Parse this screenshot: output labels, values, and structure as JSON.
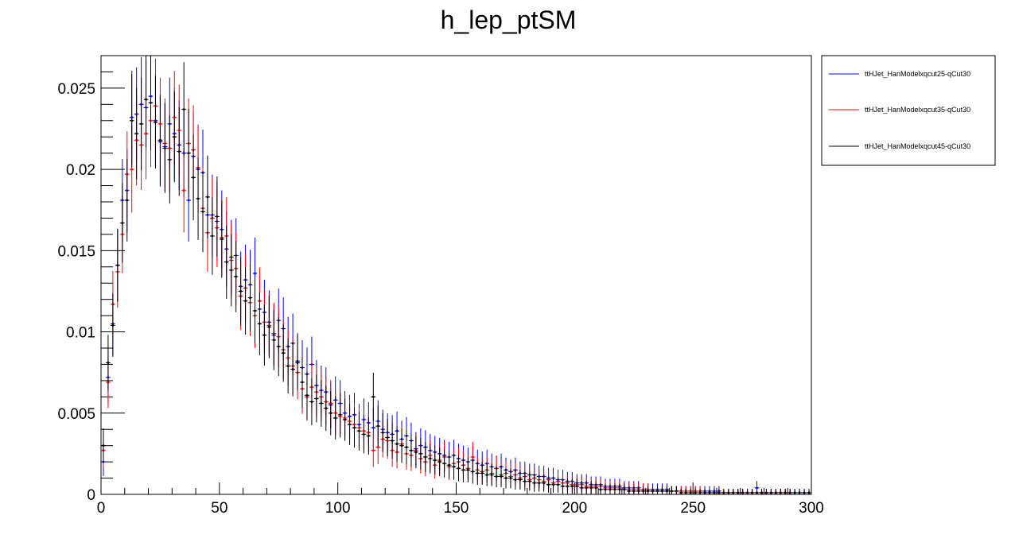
{
  "chart_data": {
    "type": "scatter",
    "title": "h_lep_ptSM",
    "xlabel": "",
    "ylabel": "",
    "xlim": [
      0,
      300
    ],
    "ylim": [
      0,
      0.027
    ],
    "x_ticks": [
      0,
      50,
      100,
      150,
      200,
      250,
      300
    ],
    "x_tick_labels": [
      "0",
      "50",
      "100",
      "150",
      "200",
      "250",
      "300"
    ],
    "y_ticks": [
      0,
      0.005,
      0.01,
      0.015,
      0.02,
      0.025
    ],
    "y_tick_labels": [
      "0",
      "0.005",
      "0.01",
      "0.015",
      "0.02",
      "0.025"
    ],
    "bin_width": 2,
    "grid": false,
    "legend_position": "outside-right-top",
    "series": [
      {
        "name": "ttHJet_HanModelxqcut25-qCut30",
        "color": "#0000ff",
        "values": [
          0.002,
          0.0072,
          0.0105,
          0.0141,
          0.0181,
          0.0187,
          0.0232,
          0.0234,
          0.024,
          0.0238,
          0.0245,
          0.023,
          0.0217,
          0.0214,
          0.0228,
          0.0222,
          0.0215,
          0.021,
          0.0181,
          0.0208,
          0.02,
          0.0198,
          0.0172,
          0.0172,
          0.0168,
          0.0163,
          0.0151,
          0.0146,
          0.0147,
          0.0128,
          0.0132,
          0.0129,
          0.0136,
          0.0114,
          0.0112,
          0.0106,
          0.0098,
          0.0107,
          0.0102,
          0.0091,
          0.0093,
          0.0082,
          0.0078,
          0.0074,
          0.008,
          0.0067,
          0.0064,
          0.0063,
          0.0055,
          0.0058,
          0.0056,
          0.005,
          0.0048,
          0.0049,
          0.0043,
          0.0046,
          0.0044,
          0.0041,
          0.0045,
          0.004,
          0.0038,
          0.0037,
          0.0039,
          0.0034,
          0.0036,
          0.0033,
          0.0028,
          0.003,
          0.0029,
          0.0027,
          0.0026,
          0.0025,
          0.0024,
          0.0023,
          0.0024,
          0.0022,
          0.0021,
          0.002,
          0.0021,
          0.0019,
          0.0018,
          0.0019,
          0.0017,
          0.0016,
          0.0017,
          0.0015,
          0.0014,
          0.0015,
          0.0013,
          0.0013,
          0.0012,
          0.0012,
          0.0011,
          0.0011,
          0.001,
          0.001,
          0.0009,
          0.0009,
          0.0008,
          0.0008,
          0.0007,
          0.0007,
          0.0007,
          0.0006,
          0.0006,
          0.0006,
          0.0005,
          0.0005,
          0.0005,
          0.0005,
          0.0004,
          0.0004,
          0.0004,
          0.0004,
          0.0003,
          0.0003,
          0.0003,
          0.0003,
          0.0003,
          0.0003,
          0.0002,
          0.0002,
          0.0002,
          0.0002,
          0.0002,
          0.0002,
          0.0002,
          0.0002,
          0.0002,
          0.0002,
          0.0002,
          0.0001,
          0.0001,
          0.0001,
          0.0001,
          0.0001,
          0.0001,
          0.0001,
          0.0004,
          0.0001,
          0.0001,
          0.0001,
          0.0001,
          0.0001,
          0.0001,
          0.0001,
          0.0001,
          0.0001,
          0.0001,
          0.0001
        ]
      },
      {
        "name": "ttHJet_HanModelxqcut35-qCut30",
        "color": "#ff0000",
        "values": [
          0.0027,
          0.0069,
          0.0117,
          0.0137,
          0.016,
          0.0197,
          0.02,
          0.0218,
          0.0215,
          0.0222,
          0.023,
          0.0239,
          0.0228,
          0.0216,
          0.0213,
          0.0232,
          0.0224,
          0.0187,
          0.0216,
          0.0212,
          0.0201,
          0.0176,
          0.0161,
          0.017,
          0.0164,
          0.0158,
          0.0159,
          0.0144,
          0.0139,
          0.0122,
          0.0127,
          0.0118,
          0.011,
          0.0119,
          0.0106,
          0.0104,
          0.0099,
          0.0097,
          0.0089,
          0.0084,
          0.0079,
          0.0075,
          0.0065,
          0.006,
          0.0066,
          0.0063,
          0.006,
          0.0057,
          0.0056,
          0.005,
          0.0048,
          0.0047,
          0.0045,
          0.0043,
          0.0041,
          0.0039,
          0.0038,
          0.0027,
          0.0029,
          0.0034,
          0.0033,
          0.0027,
          0.0026,
          0.0031,
          0.0025,
          0.0024,
          0.0027,
          0.0022,
          0.002,
          0.0024,
          0.0018,
          0.0021,
          0.0023,
          0.0017,
          0.0019,
          0.002,
          0.0018,
          0.0016,
          0.0023,
          0.0015,
          0.0014,
          0.0015,
          0.0013,
          0.0016,
          0.0012,
          0.0013,
          0.0011,
          0.0012,
          0.001,
          0.0011,
          0.0009,
          0.001,
          0.0009,
          0.0008,
          0.0009,
          0.0007,
          0.0008,
          0.0007,
          0.0007,
          0.0006,
          0.0006,
          0.0006,
          0.0005,
          0.0005,
          0.0005,
          0.0005,
          0.0004,
          0.0004,
          0.0004,
          0.0004,
          0.0003,
          0.0003,
          0.0003,
          0.0003,
          0.0003,
          0.0003,
          0.0002,
          0.0002,
          0.0002,
          0.0002,
          0.0002,
          0.0002,
          0.0002,
          0.0002,
          0.0002,
          0.0002,
          0.0002,
          0.0001,
          0.0001,
          0.0001,
          0.0001,
          0.0001,
          0.0001,
          0.0001,
          0.0001,
          0.0001,
          0.0001,
          0.0001,
          0.0001,
          0.0001,
          0.0001,
          0.0001,
          0.0001,
          0.0001,
          0.0001,
          0.0001
        ]
      },
      {
        "name": "ttHJet_HanModelxqcut45-qCut30",
        "color": "#000000",
        "values": [
          0.003,
          0.0081,
          0.0104,
          0.0141,
          0.0167,
          0.0181,
          0.023,
          0.0222,
          0.0228,
          0.0243,
          0.0241,
          0.0229,
          0.0218,
          0.0213,
          0.0206,
          0.022,
          0.0211,
          0.0237,
          0.021,
          0.0195,
          0.0182,
          0.0174,
          0.0183,
          0.0159,
          0.0171,
          0.0157,
          0.0143,
          0.0138,
          0.0134,
          0.0125,
          0.0119,
          0.0121,
          0.0113,
          0.0105,
          0.0098,
          0.0103,
          0.0095,
          0.0091,
          0.0087,
          0.0079,
          0.0077,
          0.0081,
          0.0069,
          0.0061,
          0.0057,
          0.0059,
          0.0056,
          0.0053,
          0.005,
          0.0047,
          0.0049,
          0.0046,
          0.0043,
          0.0041,
          0.0039,
          0.0037,
          0.0036,
          0.006,
          0.0042,
          0.0038,
          0.0035,
          0.0033,
          0.0031,
          0.003,
          0.0029,
          0.0027,
          0.0026,
          0.0025,
          0.0023,
          0.0022,
          0.0021,
          0.002,
          0.0019,
          0.0018,
          0.0017,
          0.0016,
          0.0015,
          0.0015,
          0.0014,
          0.0013,
          0.0013,
          0.0012,
          0.0012,
          0.0011,
          0.0011,
          0.001,
          0.001,
          0.0009,
          0.0009,
          0.0008,
          0.0008,
          0.0007,
          0.0007,
          0.0007,
          0.0006,
          0.0006,
          0.0006,
          0.0005,
          0.0005,
          0.0005,
          0.0005,
          0.0004,
          0.0004,
          0.0004,
          0.0004,
          0.0003,
          0.0003,
          0.0003,
          0.0003,
          0.0003,
          0.0003,
          0.0002,
          0.0002,
          0.0002,
          0.0002,
          0.0002,
          0.0002,
          0.0002,
          0.0002,
          0.0002,
          0.0002,
          0.0002,
          0.0001,
          0.0001,
          0.0001,
          0.0001,
          0.0001,
          0.0001,
          0.0001,
          0.0001,
          0.0001,
          0.0001,
          0.0001,
          0.0001,
          0.0001,
          0.0001,
          0.0001,
          0.0001,
          0.0001,
          0.0001,
          0.0001,
          0.0001,
          0.0001,
          0.0001,
          0.0001,
          0.0001,
          0.0001,
          0.0001,
          0.0001,
          0.0001
        ]
      }
    ]
  }
}
